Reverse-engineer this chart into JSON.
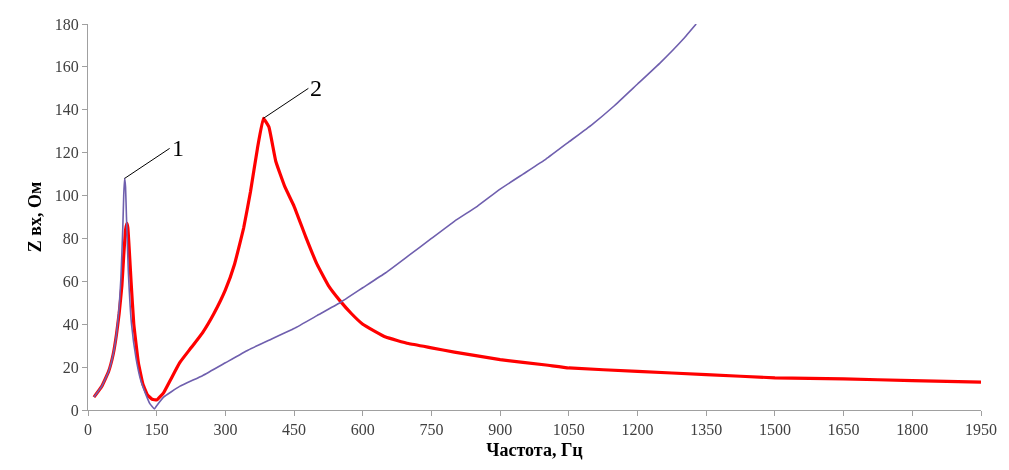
{
  "chart_data": {
    "type": "line",
    "xlabel": "Частота, Гц",
    "ylabel": "Z вх, Ом",
    "series": [
      {
        "color": "#ff0000",
        "x": [
          13,
          30,
          45,
          55,
          62,
          68,
          74,
          78,
          82,
          85,
          87,
          90,
          94,
          100,
          110,
          120,
          130,
          140,
          150,
          165,
          180,
          200,
          225,
          250,
          275,
          300,
          320,
          340,
          355,
          370,
          383,
          395,
          410,
          430,
          450,
          475,
          500,
          525,
          550,
          575,
          600,
          650,
          700,
          750,
          800,
          900,
          1000,
          1050,
          1200,
          1350,
          1500,
          1650,
          1800,
          1950
        ],
        "values": [
          6,
          11,
          18,
          26,
          35,
          45,
          58,
          72,
          84,
          87,
          85,
          75,
          60,
          40,
          22,
          12,
          7,
          5,
          4.7,
          8,
          14,
          22,
          29,
          36,
          45,
          56,
          68,
          85,
          102,
          122,
          136,
          132,
          116,
          104,
          95,
          81,
          68,
          58,
          51,
          45,
          40,
          34,
          31,
          29,
          27,
          23.5,
          21,
          19.6,
          18,
          16.5,
          15,
          14.5,
          13.7,
          13
        ]
      },
      {
        "color": "#6f5fae",
        "x": [
          13,
          30,
          45,
          55,
          62,
          68,
          72,
          76,
          78,
          80,
          82,
          84,
          88,
          95,
          105,
          115,
          125,
          135,
          145,
          150,
          165,
          200,
          250,
          300,
          350,
          400,
          450,
          500,
          550,
          600,
          650,
          700,
          750,
          800,
          850,
          900,
          950,
          1000,
          1050,
          1100,
          1150,
          1200,
          1250,
          1300,
          1328
        ],
        "values": [
          6,
          11,
          18,
          26,
          35,
          48,
          62,
          85,
          100,
          108,
          104,
          90,
          65,
          40,
          24,
          14,
          8,
          3,
          0.5,
          2,
          6,
          11,
          16,
          22,
          28,
          33,
          38,
          44,
          50,
          57,
          64,
          72,
          80,
          88,
          95,
          103,
          110,
          117,
          125,
          133,
          142,
          152,
          162,
          173,
          180
        ]
      }
    ],
    "annotations": [
      {
        "text": "1",
        "x": 80,
        "y": 108
      },
      {
        "text": "2",
        "x": 383,
        "y": 136
      }
    ],
    "xlim": [
      0,
      1950
    ],
    "xticks": [
      0,
      150,
      300,
      450,
      600,
      750,
      900,
      1050,
      1200,
      1350,
      1500,
      1650,
      1800,
      1950
    ],
    "ylim": [
      0,
      180
    ],
    "yticks": [
      0,
      20,
      40,
      60,
      80,
      100,
      120,
      140,
      160,
      180
    ],
    "grid": false,
    "marker": "none",
    "line_style": "solid"
  }
}
